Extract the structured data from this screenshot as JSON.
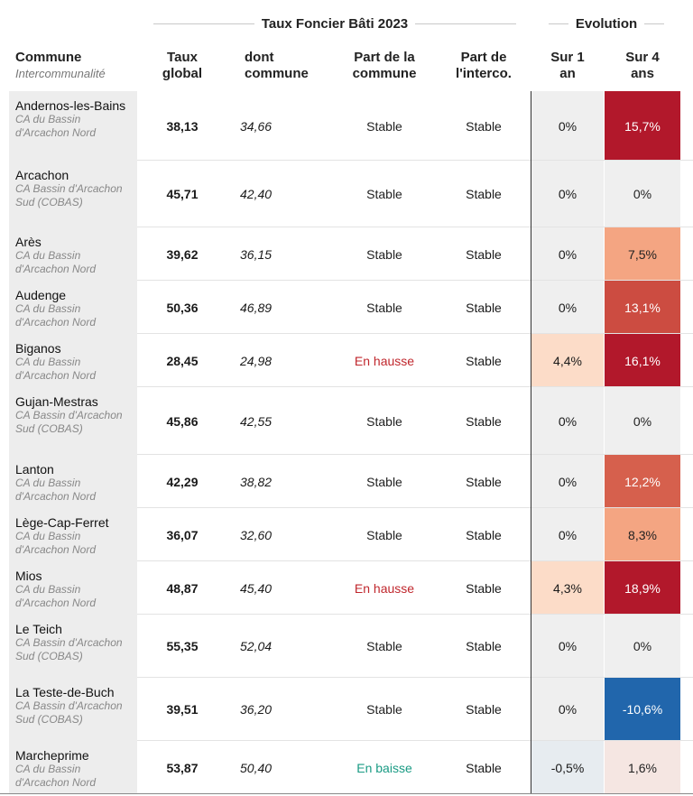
{
  "groups": {
    "taux": "Taux Foncier Bâti 2023",
    "evolution": "Evolution"
  },
  "headers": {
    "commune": "Commune",
    "intercommunalite": "Intercommunalité",
    "taux_global_1": "Taux",
    "taux_global_2": "global",
    "dont_commune_1": "dont",
    "dont_commune_2": "commune",
    "part_commune_1": "Part de la",
    "part_commune_2": "commune",
    "part_interco_1": "Part de",
    "part_interco_2": "l'interco.",
    "sur1_1": "Sur 1",
    "sur1_2": "an",
    "sur4_1": "Sur 4",
    "sur4_2": "ans"
  },
  "rows": [
    {
      "commune": "Andernos-les-Bains",
      "interco": "CA du Bassin d'Arcachon Nord",
      "taux": "38,13",
      "dont": "34,66",
      "part": "Stable",
      "interco_part": "Stable",
      "ev1": "0%",
      "ev4": "15,7%",
      "ev1_bg": "#efefef",
      "ev4_bg": "#b2182b",
      "ev4_fg": "#ffffff",
      "part_color": "#222222"
    },
    {
      "commune": "Arcachon",
      "interco": "CA Bassin d'Arcachon Sud (COBAS)",
      "taux": "45,71",
      "dont": "42,40",
      "part": "Stable",
      "interco_part": "Stable",
      "ev1": "0%",
      "ev4": "0%",
      "ev1_bg": "#efefef",
      "ev4_bg": "#efefef",
      "ev4_fg": "#222222",
      "part_color": "#222222"
    },
    {
      "commune": "Arès",
      "interco": "CA du Bassin d'Arcachon Nord",
      "taux": "39,62",
      "dont": "36,15",
      "part": "Stable",
      "interco_part": "Stable",
      "ev1": "0%",
      "ev4": "7,5%",
      "ev1_bg": "#efefef",
      "ev4_bg": "#f4a582",
      "ev4_fg": "#222222",
      "part_color": "#222222"
    },
    {
      "commune": "Audenge",
      "interco": "CA du Bassin d'Arcachon Nord",
      "taux": "50,36",
      "dont": "46,89",
      "part": "Stable",
      "interco_part": "Stable",
      "ev1": "0%",
      "ev4": "13,1%",
      "ev1_bg": "#efefef",
      "ev4_bg": "#cc4c41",
      "ev4_fg": "#ffffff",
      "part_color": "#222222"
    },
    {
      "commune": "Biganos",
      "interco": "CA du Bassin d'Arcachon Nord",
      "taux": "28,45",
      "dont": "24,98",
      "part": "En hausse",
      "interco_part": "Stable",
      "ev1": "4,4%",
      "ev4": "16,1%",
      "ev1_bg": "#fcdcc8",
      "ev4_bg": "#b2182b",
      "ev4_fg": "#ffffff",
      "part_color": "#c0272d"
    },
    {
      "commune": "Gujan-Mestras",
      "interco": "CA Bassin d'Arcachon Sud (COBAS)",
      "taux": "45,86",
      "dont": "42,55",
      "part": "Stable",
      "interco_part": "Stable",
      "ev1": "0%",
      "ev4": "0%",
      "ev1_bg": "#efefef",
      "ev4_bg": "#efefef",
      "ev4_fg": "#222222",
      "part_color": "#222222"
    },
    {
      "commune": "Lanton",
      "interco": "CA du Bassin d'Arcachon Nord",
      "taux": "42,29",
      "dont": "38,82",
      "part": "Stable",
      "interco_part": "Stable",
      "ev1": "0%",
      "ev4": "12,2%",
      "ev1_bg": "#efefef",
      "ev4_bg": "#d6604d",
      "ev4_fg": "#ffffff",
      "part_color": "#222222"
    },
    {
      "commune": "Lège-Cap-Ferret",
      "interco": "CA du Bassin d'Arcachon Nord",
      "taux": "36,07",
      "dont": "32,60",
      "part": "Stable",
      "interco_part": "Stable",
      "ev1": "0%",
      "ev4": "8,3%",
      "ev1_bg": "#efefef",
      "ev4_bg": "#f4a582",
      "ev4_fg": "#222222",
      "part_color": "#222222"
    },
    {
      "commune": "Mios",
      "interco": "CA du Bassin d'Arcachon Nord",
      "taux": "48,87",
      "dont": "45,40",
      "part": "En hausse",
      "interco_part": "Stable",
      "ev1": "4,3%",
      "ev4": "18,9%",
      "ev1_bg": "#fcdcc8",
      "ev4_bg": "#b2182b",
      "ev4_fg": "#ffffff",
      "part_color": "#c0272d"
    },
    {
      "commune": "Le Teich",
      "interco": "CA Bassin d'Arcachon Sud (COBAS)",
      "taux": "55,35",
      "dont": "52,04",
      "part": "Stable",
      "interco_part": "Stable",
      "ev1": "0%",
      "ev4": "0%",
      "ev1_bg": "#efefef",
      "ev4_bg": "#efefef",
      "ev4_fg": "#222222",
      "part_color": "#222222"
    },
    {
      "commune": "La Teste-de-Buch",
      "interco": "CA Bassin d'Arcachon Sud (COBAS)",
      "taux": "39,51",
      "dont": "36,20",
      "part": "Stable",
      "interco_part": "Stable",
      "ev1": "0%",
      "ev4": "-10,6%",
      "ev1_bg": "#efefef",
      "ev4_bg": "#2166ac",
      "ev4_fg": "#ffffff",
      "part_color": "#222222"
    },
    {
      "commune": "Marcheprime",
      "interco": "CA du Bassin d'Arcachon Nord",
      "taux": "53,87",
      "dont": "50,40",
      "part": "En baisse",
      "interco_part": "Stable",
      "ev1": "-0,5%",
      "ev4": "1,6%",
      "ev1_bg": "#e7ecf0",
      "ev4_bg": "#f5e6e2",
      "ev4_fg": "#222222",
      "part_color": "#1a9b84"
    }
  ]
}
